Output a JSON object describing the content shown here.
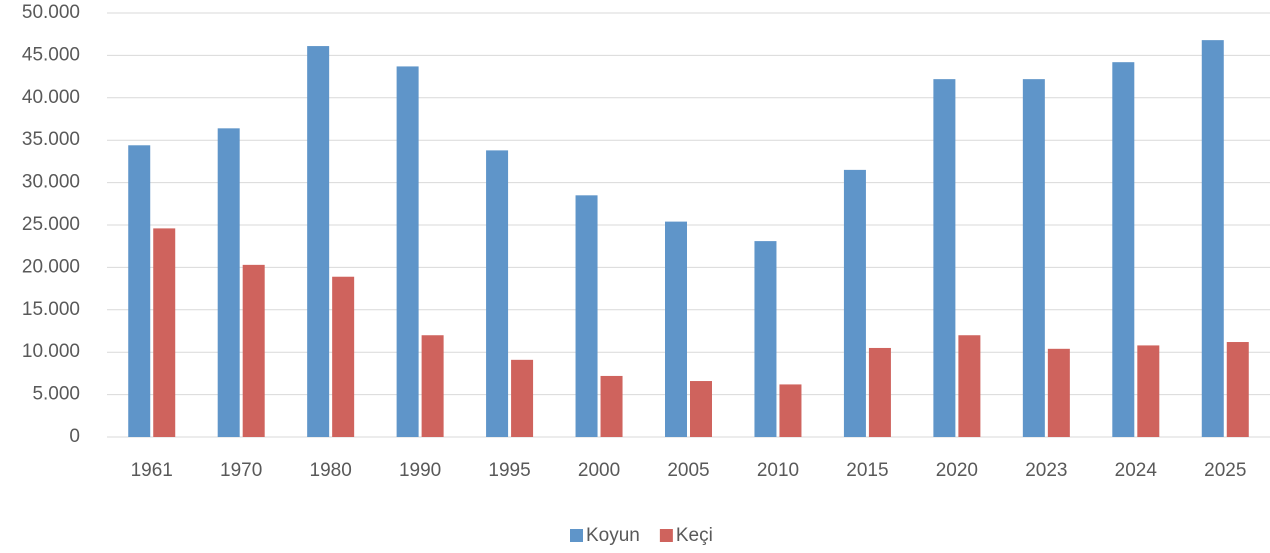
{
  "chart_data": {
    "type": "bar",
    "categories": [
      "1961",
      "1970",
      "1980",
      "1990",
      "1995",
      "2000",
      "2005",
      "2010",
      "2015",
      "2020",
      "2023",
      "2024",
      "2025"
    ],
    "series": [
      {
        "name": "Koyun",
        "color": "#5f95c9",
        "values": [
          34400,
          36400,
          46100,
          43700,
          33800,
          28500,
          25400,
          23100,
          31500,
          42200,
          42200,
          44200,
          46800
        ]
      },
      {
        "name": "Keçi",
        "color": "#cf635d",
        "values": [
          24600,
          20300,
          18900,
          12000,
          9100,
          7200,
          6600,
          6200,
          10500,
          12000,
          10400,
          10800,
          11200
        ]
      }
    ],
    "ylim": [
      0,
      50000
    ],
    "yticks": [
      0,
      {
        "value": 5000,
        "label": "5.000"
      },
      {
        "value": 10000,
        "label": "10.000"
      },
      {
        "value": 15000,
        "label": "15.000"
      },
      {
        "value": 20000,
        "label": "20.000"
      },
      {
        "value": 25000,
        "label": "25.000"
      },
      {
        "value": 30000,
        "label": "30.000"
      },
      {
        "value": 35000,
        "label": "35.000"
      },
      {
        "value": 40000,
        "label": "40.000"
      },
      {
        "value": 45000,
        "label": "45.000"
      },
      {
        "value": 50000,
        "label": "50.000"
      }
    ],
    "grid": true,
    "legend": "bottom"
  }
}
